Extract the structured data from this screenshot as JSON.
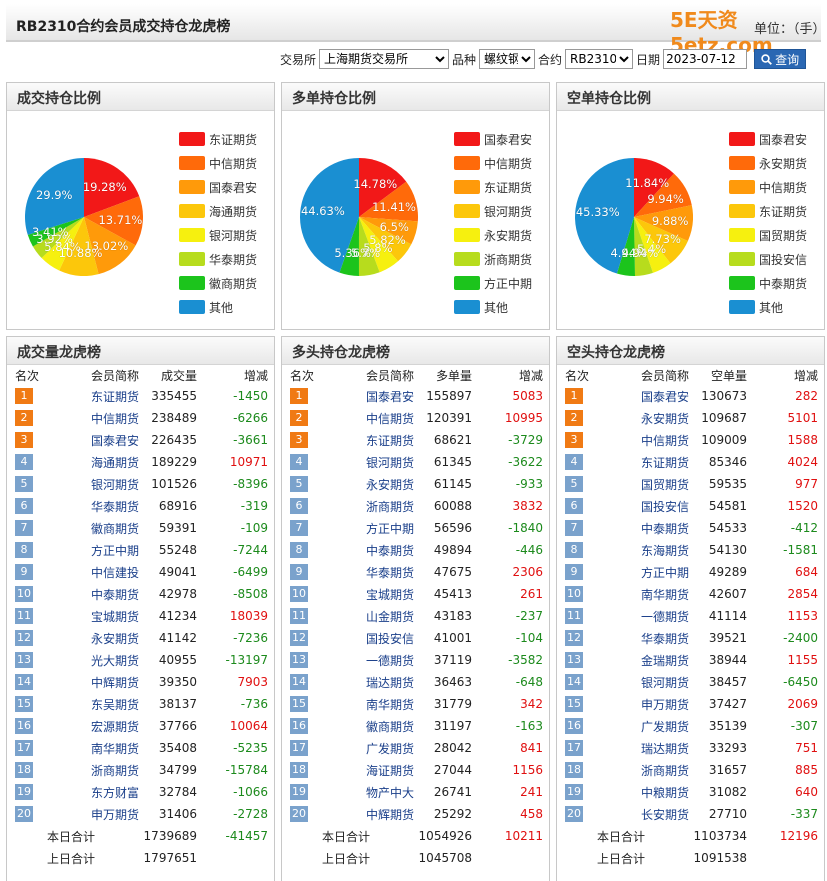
{
  "header": {
    "title": "RB2310合约会员成交持仓龙虎榜",
    "unit": "单位：（手）",
    "watermark": "5E天资5etz.com"
  },
  "filters": {
    "exchange_label": "交易所",
    "exchange_value": "上海期货交易所",
    "variety_label": "品种",
    "variety_value": "螺纹钢",
    "contract_label": "合约",
    "contract_value": "RB2310",
    "date_label": "日期",
    "date_value": "2023-07-12",
    "query_label": "查询"
  },
  "colors": [
    "#f21818",
    "#ff6a0a",
    "#ff9a0a",
    "#fcc70b",
    "#f6f00f",
    "#b7dc1d",
    "#1cc41c",
    "#1a8fd2"
  ],
  "pies": [
    {
      "title": "成交持仓比例",
      "legend": [
        "东证期货",
        "中信期货",
        "国泰君安",
        "海通期货",
        "银河期货",
        "华泰期货",
        "徽商期货",
        "其他"
      ],
      "values": [
        19.28,
        13.71,
        13.02,
        10.88,
        5.84,
        3.92,
        3.41,
        29.9
      ],
      "labels": [
        "19.28%",
        "13.71%",
        "13.02%",
        "10.88%",
        "5.84%",
        "3.92%",
        "3.41%",
        "29.9%"
      ]
    },
    {
      "title": "多单持仓比例",
      "legend": [
        "国泰君安",
        "中信期货",
        "东证期货",
        "银河期货",
        "永安期货",
        "浙商期货",
        "方正中期",
        "其他"
      ],
      "values": [
        14.78,
        11.41,
        6.5,
        5.82,
        5.8,
        5.7,
        5.36,
        44.63
      ],
      "labels": [
        "14.78%",
        "11.41%",
        "6.5%",
        "5.82%",
        "5.8%",
        "5.7%",
        "5.36%",
        "44.63%"
      ]
    },
    {
      "title": "空单持仓比例",
      "legend": [
        "国泰君安",
        "永安期货",
        "中信期货",
        "东证期货",
        "国贸期货",
        "国投安信",
        "中泰期货",
        "其他"
      ],
      "values": [
        11.84,
        9.94,
        9.88,
        7.73,
        5.4,
        4.94,
        4.94,
        45.33
      ],
      "labels": [
        "11.84%",
        "9.94%",
        "9.88%",
        "7.73%",
        "5.4%",
        "4.94%",
        "4.94%",
        "45.33%"
      ]
    }
  ],
  "tables": [
    {
      "title": "成交量龙虎榜",
      "headers": [
        "名次",
        "会员简称",
        "成交量",
        "增减"
      ],
      "rows": [
        [
          "1",
          "东证期货",
          "335455",
          "-1450"
        ],
        [
          "2",
          "中信期货",
          "238489",
          "-6266"
        ],
        [
          "3",
          "国泰君安",
          "226435",
          "-3661"
        ],
        [
          "4",
          "海通期货",
          "189229",
          "10971"
        ],
        [
          "5",
          "银河期货",
          "101526",
          "-8396"
        ],
        [
          "6",
          "华泰期货",
          "68916",
          "-319"
        ],
        [
          "7",
          "徽商期货",
          "59391",
          "-109"
        ],
        [
          "8",
          "方正中期",
          "55248",
          "-7244"
        ],
        [
          "9",
          "中信建投",
          "49041",
          "-6499"
        ],
        [
          "10",
          "中泰期货",
          "42978",
          "-8508"
        ],
        [
          "11",
          "宝城期货",
          "41234",
          "18039"
        ],
        [
          "12",
          "永安期货",
          "41142",
          "-7236"
        ],
        [
          "13",
          "光大期货",
          "40955",
          "-13197"
        ],
        [
          "14",
          "中辉期货",
          "39350",
          "7903"
        ],
        [
          "15",
          "东吴期货",
          "38137",
          "-736"
        ],
        [
          "16",
          "宏源期货",
          "37766",
          "10064"
        ],
        [
          "17",
          "南华期货",
          "35408",
          "-5235"
        ],
        [
          "18",
          "浙商期货",
          "34799",
          "-15784"
        ],
        [
          "19",
          "东方财富",
          "32784",
          "-1066"
        ],
        [
          "20",
          "申万期货",
          "31406",
          "-2728"
        ]
      ],
      "today": {
        "label": "本日合计",
        "value": "1739689",
        "change": "-41457"
      },
      "yesterday": {
        "label": "上日合计",
        "value": "1797651"
      }
    },
    {
      "title": "多头持仓龙虎榜",
      "headers": [
        "名次",
        "会员简称",
        "多单量",
        "增减"
      ],
      "rows": [
        [
          "1",
          "国泰君安",
          "155897",
          "5083"
        ],
        [
          "2",
          "中信期货",
          "120391",
          "10995"
        ],
        [
          "3",
          "东证期货",
          "68621",
          "-3729"
        ],
        [
          "4",
          "银河期货",
          "61345",
          "-3622"
        ],
        [
          "5",
          "永安期货",
          "61145",
          "-933"
        ],
        [
          "6",
          "浙商期货",
          "60088",
          "3832"
        ],
        [
          "7",
          "方正中期",
          "56596",
          "-1840"
        ],
        [
          "8",
          "中泰期货",
          "49894",
          "-446"
        ],
        [
          "9",
          "华泰期货",
          "47675",
          "2306"
        ],
        [
          "10",
          "宝城期货",
          "45413",
          "261"
        ],
        [
          "11",
          "山金期货",
          "43183",
          "-237"
        ],
        [
          "12",
          "国投安信",
          "41001",
          "-104"
        ],
        [
          "13",
          "一德期货",
          "37119",
          "-3582"
        ],
        [
          "14",
          "瑞达期货",
          "36463",
          "-648"
        ],
        [
          "15",
          "南华期货",
          "31779",
          "342"
        ],
        [
          "16",
          "徽商期货",
          "31197",
          "-163"
        ],
        [
          "17",
          "广发期货",
          "28042",
          "841"
        ],
        [
          "18",
          "海证期货",
          "27044",
          "1156"
        ],
        [
          "19",
          "物产中大",
          "26741",
          "241"
        ],
        [
          "20",
          "中辉期货",
          "25292",
          "458"
        ]
      ],
      "today": {
        "label": "本日合计",
        "value": "1054926",
        "change": "10211"
      },
      "yesterday": {
        "label": "上日合计",
        "value": "1045708"
      }
    },
    {
      "title": "空头持仓龙虎榜",
      "headers": [
        "名次",
        "会员简称",
        "空单量",
        "增减"
      ],
      "rows": [
        [
          "1",
          "国泰君安",
          "130673",
          "282"
        ],
        [
          "2",
          "永安期货",
          "109687",
          "5101"
        ],
        [
          "3",
          "中信期货",
          "109009",
          "1588"
        ],
        [
          "4",
          "东证期货",
          "85346",
          "4024"
        ],
        [
          "5",
          "国贸期货",
          "59535",
          "977"
        ],
        [
          "6",
          "国投安信",
          "54581",
          "1520"
        ],
        [
          "7",
          "中泰期货",
          "54533",
          "-412"
        ],
        [
          "8",
          "东海期货",
          "54130",
          "-1581"
        ],
        [
          "9",
          "方正中期",
          "49289",
          "684"
        ],
        [
          "10",
          "南华期货",
          "42607",
          "2854"
        ],
        [
          "11",
          "一德期货",
          "41114",
          "1153"
        ],
        [
          "12",
          "华泰期货",
          "39521",
          "-2400"
        ],
        [
          "13",
          "金瑞期货",
          "38944",
          "1155"
        ],
        [
          "14",
          "银河期货",
          "38457",
          "-6450"
        ],
        [
          "15",
          "申万期货",
          "37427",
          "2069"
        ],
        [
          "16",
          "广发期货",
          "35139",
          "-307"
        ],
        [
          "17",
          "瑞达期货",
          "33293",
          "751"
        ],
        [
          "18",
          "浙商期货",
          "31657",
          "885"
        ],
        [
          "19",
          "中粮期货",
          "31082",
          "640"
        ],
        [
          "20",
          "长安期货",
          "27710",
          "-337"
        ]
      ],
      "today": {
        "label": "本日合计",
        "value": "1103734",
        "change": "12196"
      },
      "yesterday": {
        "label": "上日合计",
        "value": "1091538"
      }
    }
  ]
}
